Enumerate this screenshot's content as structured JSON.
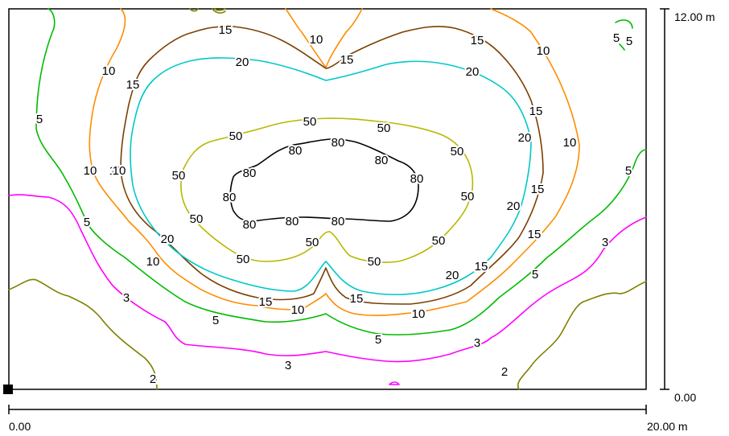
{
  "scale": {
    "x_start": "0.00",
    "x_end": "20.00 m",
    "y_start": "0.00",
    "y_end": "12.00 m"
  },
  "levels": [
    {
      "value": "2",
      "color": "#808000"
    },
    {
      "value": "3",
      "color": "#ff00ff"
    },
    {
      "value": "5",
      "color": "#00bb00"
    },
    {
      "value": "10",
      "color": "#ff8c00"
    },
    {
      "value": "15",
      "color": "#7b3f00"
    },
    {
      "value": "20",
      "color": "#00c8c8"
    },
    {
      "value": "50",
      "color": "#b8b800"
    },
    {
      "value": "80",
      "color": "#000000"
    }
  ],
  "contour_labels": [
    "15",
    "10",
    "15",
    "10",
    "15",
    "10",
    "20",
    "15",
    "20",
    "5",
    "5",
    "5",
    "50",
    "50",
    "50",
    "80",
    "80",
    "80",
    "80",
    "80",
    "80",
    "80",
    "80",
    "80",
    "50",
    "50",
    "50",
    "50",
    "50",
    "50",
    "50",
    "50",
    "5",
    "10",
    "15",
    "20",
    "15",
    "20",
    "10",
    "15",
    "20",
    "10",
    "5",
    "15",
    "10",
    "15",
    "10",
    "5",
    "5",
    "3",
    "3",
    "3",
    "3",
    "5",
    "2",
    "2",
    "3",
    "5",
    "15",
    "10",
    "10",
    "10",
    "10",
    "15",
    "50",
    "20"
  ]
}
